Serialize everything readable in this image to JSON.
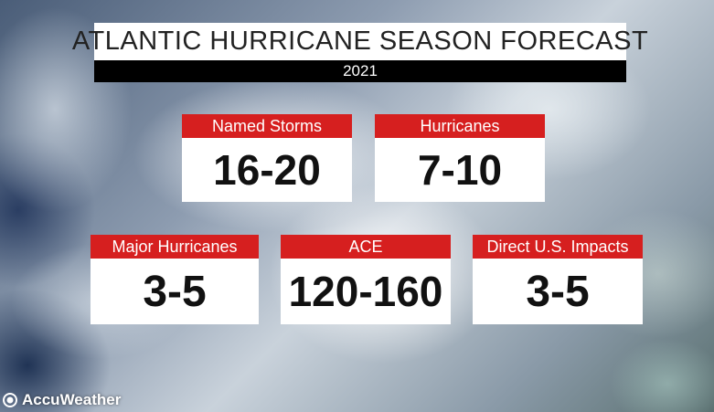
{
  "header": {
    "title": "ATLANTIC HURRICANE SEASON FORECAST",
    "year": "2021"
  },
  "stats": [
    {
      "label": "Named Storms",
      "value": "16-20"
    },
    {
      "label": "Hurricanes",
      "value": "7-10"
    },
    {
      "label": "Major Hurricanes",
      "value": "3-5"
    },
    {
      "label": "ACE",
      "value": "120-160"
    },
    {
      "label": "Direct U.S. Impacts",
      "value": "3-5"
    }
  ],
  "branding": {
    "logo_text": "AccuWeather",
    "logo_icon": "sun-icon"
  },
  "colors": {
    "label_red": "#d61f1f",
    "title_bg": "#ffffff",
    "year_bg": "#000000"
  }
}
